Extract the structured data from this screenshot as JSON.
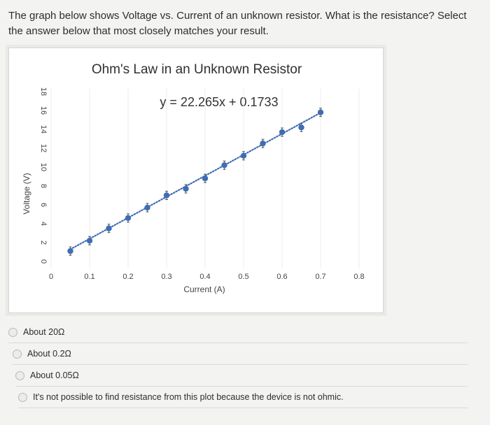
{
  "question": {
    "text": "The graph below shows Voltage vs. Current of an unknown resistor. What is the resistance? Select the answer below that most closely matches your result."
  },
  "answers": [
    {
      "label": "About 20Ω"
    },
    {
      "label": "About 0.2Ω"
    },
    {
      "label": "About 0.05Ω"
    },
    {
      "label": "It's not possible to find resistance from this plot because the device is not ohmic."
    }
  ],
  "chart_data": {
    "type": "scatter",
    "title": "Ohm's Law in an Unknown Resistor",
    "xlabel": "Current (A)",
    "ylabel": "Voltage (V)",
    "xlim": [
      0,
      0.8
    ],
    "ylim": [
      0,
      18
    ],
    "x_ticks": [
      "0",
      "0.1",
      "0.2",
      "0.3",
      "0.4",
      "0.5",
      "0.6",
      "0.7",
      "0.8"
    ],
    "y_ticks": [
      "0",
      "2",
      "4",
      "6",
      "8",
      "10",
      "12",
      "14",
      "16",
      "18"
    ],
    "trendline": {
      "equation": "y = 22.265x + 0.1733",
      "slope": 22.265,
      "intercept": 0.1733,
      "style": "dotted"
    },
    "error_bars": true,
    "grid": "vertical",
    "series": [
      {
        "color": "#3f6db5",
        "x": [
          0.05,
          0.1,
          0.15,
          0.2,
          0.25,
          0.3,
          0.35,
          0.4,
          0.45,
          0.5,
          0.55,
          0.6,
          0.65,
          0.7
        ],
        "y": [
          1.1,
          2.2,
          3.5,
          4.6,
          5.7,
          7.0,
          7.7,
          8.8,
          10.2,
          11.2,
          12.5,
          13.7,
          14.2,
          15.8
        ]
      }
    ]
  }
}
